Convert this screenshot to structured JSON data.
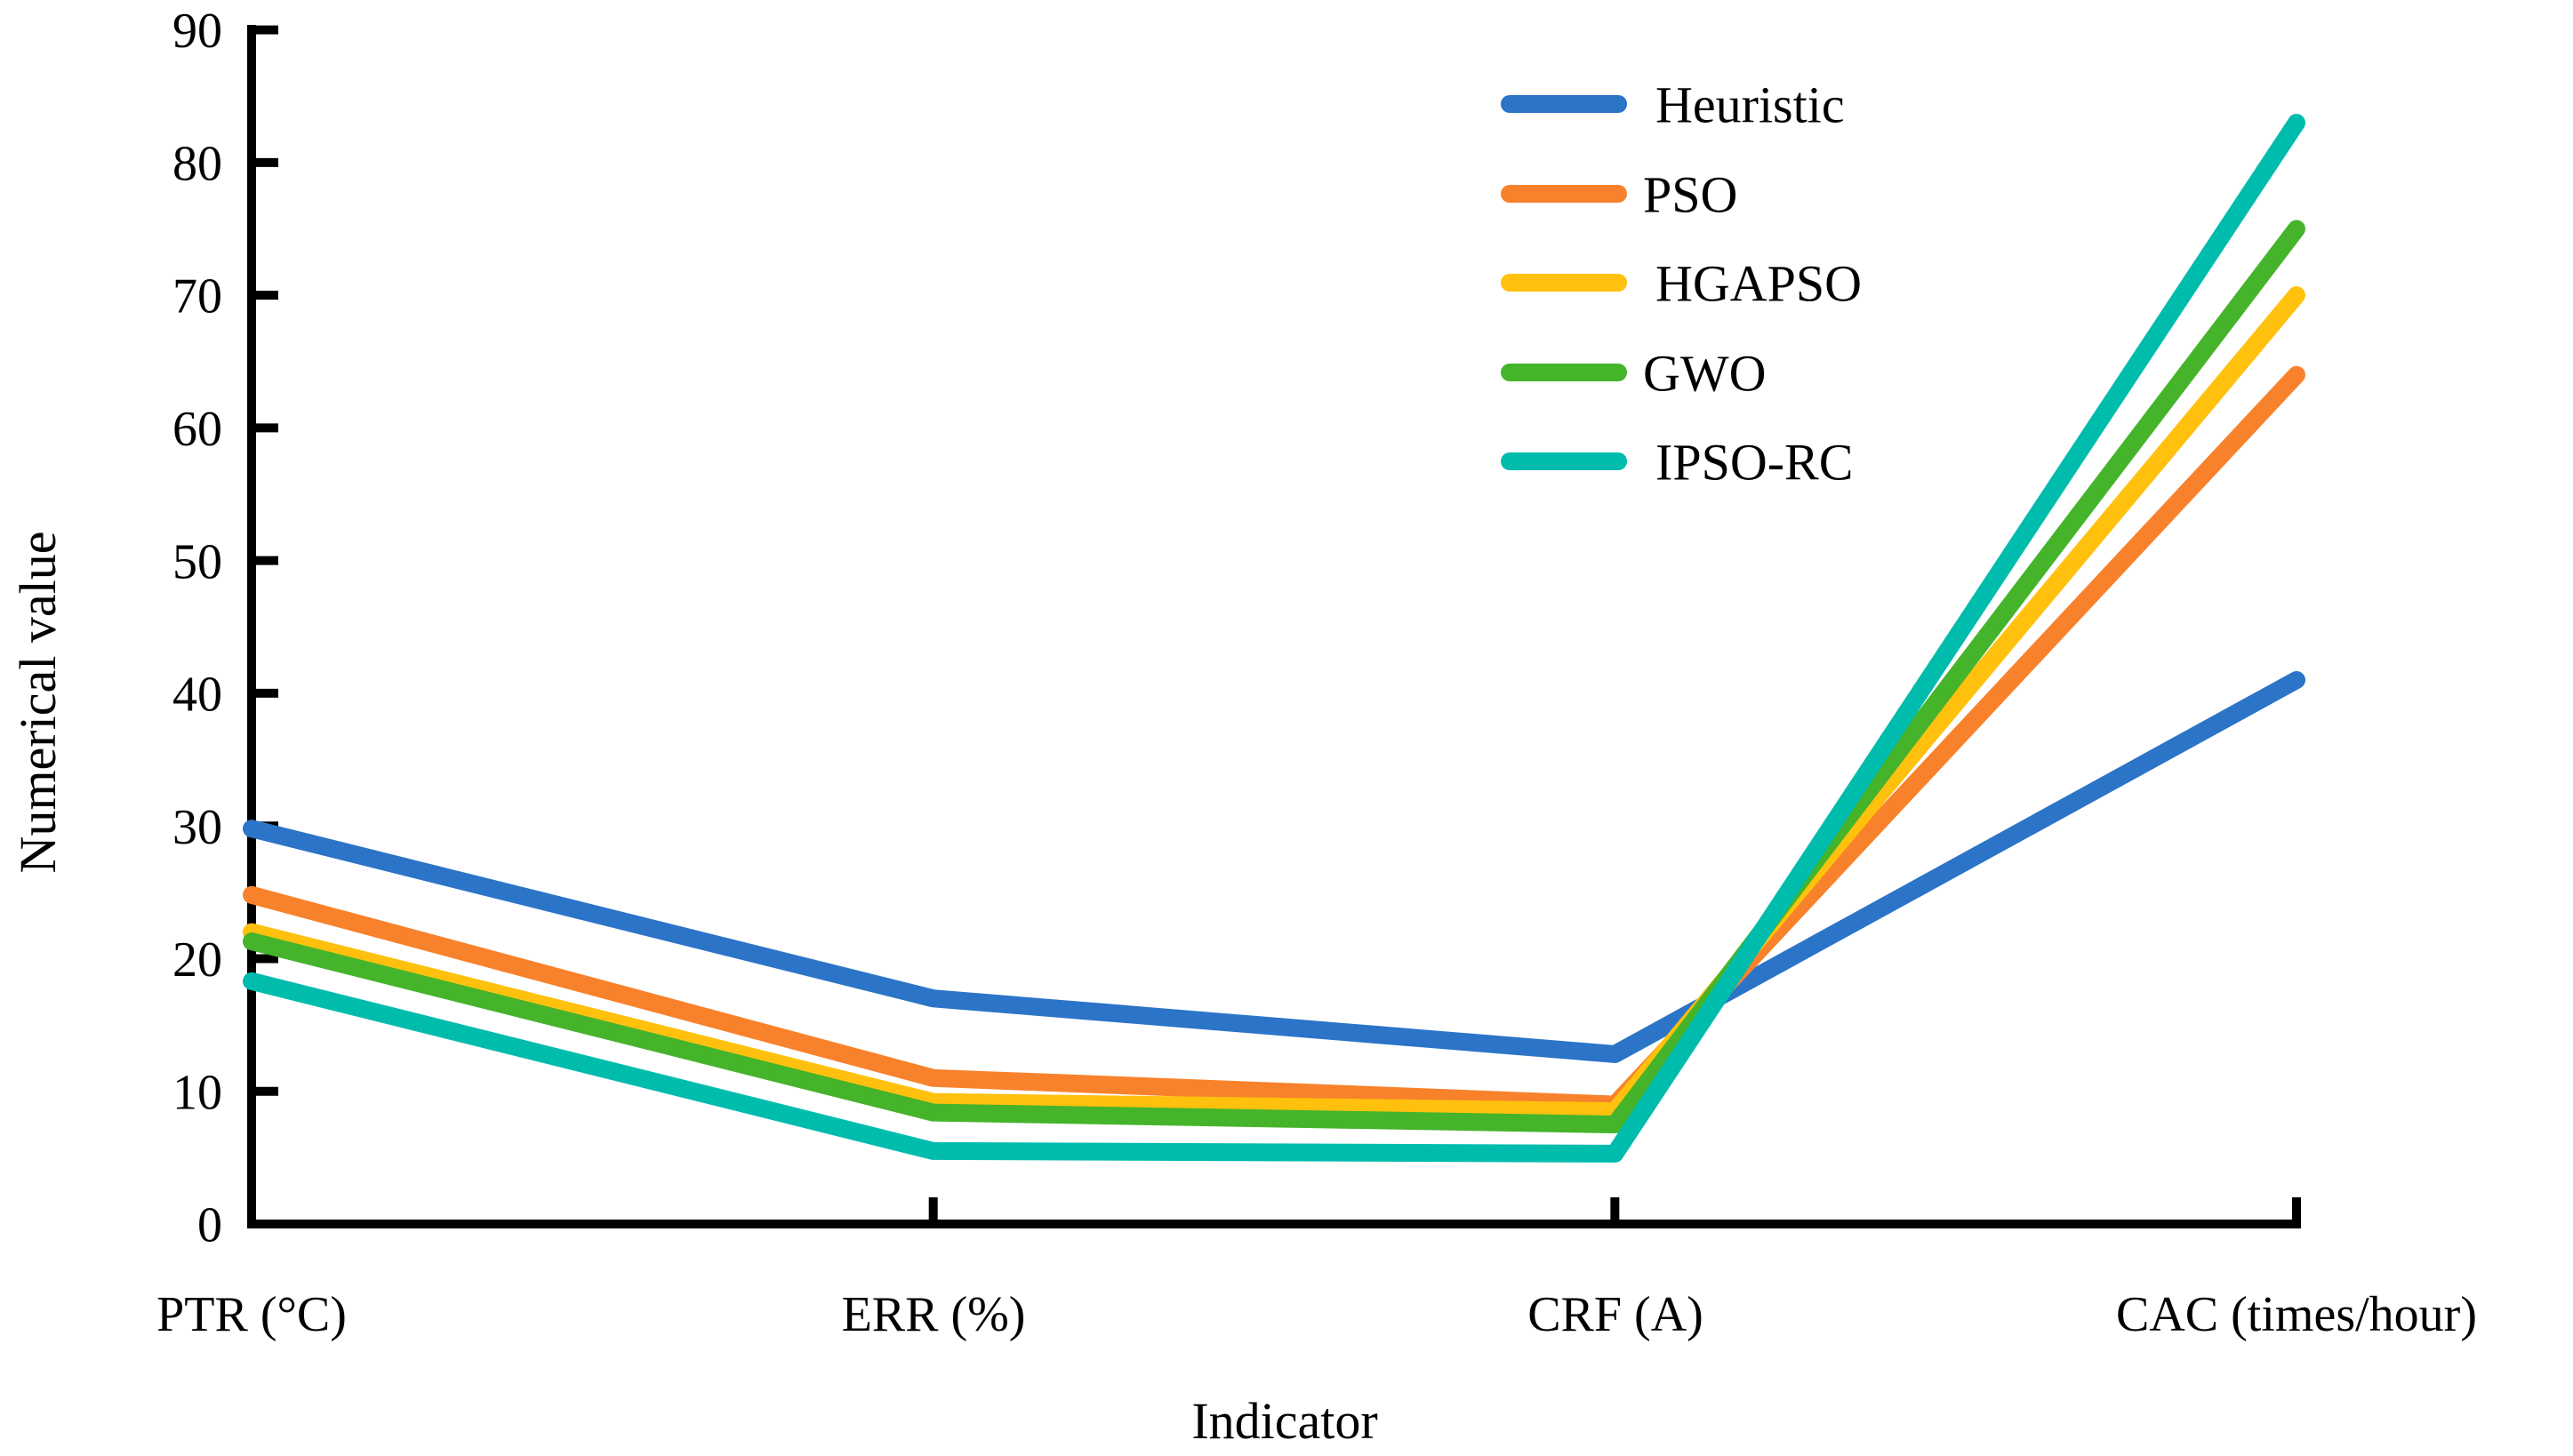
{
  "chart_data": {
    "type": "line",
    "title": "",
    "xlabel": "Indicator",
    "ylabel": "Numerical value",
    "categories": [
      "PTR (°C)",
      "ERR (%)",
      "CRF (A)",
      "CAC (times/hour)"
    ],
    "yticklabels": [
      "0",
      "10",
      "20",
      "30",
      "40",
      "50",
      "60",
      "70",
      "80",
      "90"
    ],
    "ylim": [
      0,
      90
    ],
    "grid": false,
    "legend_position": "upper right inside",
    "axis_color": "#000000",
    "series": [
      {
        "name": "Heuristic",
        "color": "#2B74C8",
        "values": [
          29.8,
          17,
          12.8,
          41
        ]
      },
      {
        "name": "PSO",
        "color": "#F8822C",
        "values": [
          24.8,
          11,
          9,
          64
        ]
      },
      {
        "name": "HGAPSO",
        "color": "#FFC10D",
        "values": [
          22,
          9.2,
          8.5,
          70
        ]
      },
      {
        "name": "GWO",
        "color": "#45B42B",
        "values": [
          21.3,
          8.4,
          7.5,
          75
        ]
      },
      {
        "name": "IPSO-RC",
        "color": "#00BCAD",
        "values": [
          18.3,
          5.5,
          5.3,
          83
        ]
      }
    ]
  }
}
